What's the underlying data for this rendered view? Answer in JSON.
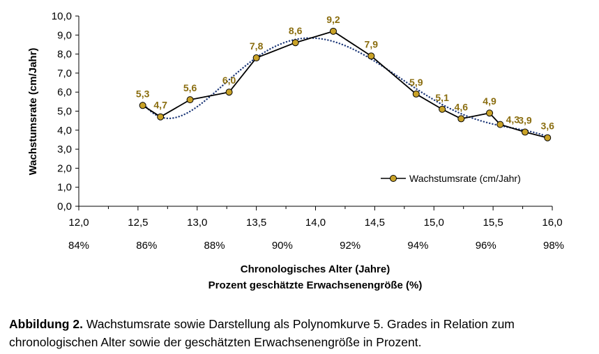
{
  "chart_data": {
    "type": "line",
    "ylabel": "Wachstumsrate (cm/Jahr)",
    "xlabel": "Chronologisches Alter (Jahre)",
    "xlabel2": "Prozent geschätzte Erwachsenengröße (%)",
    "xlim": [
      12.0,
      16.0
    ],
    "ylim": [
      0.0,
      10.0
    ],
    "x_ticks": [
      "12,0",
      "12,5",
      "13,0",
      "13,5",
      "14,0",
      "14,5",
      "15,0",
      "15,5",
      "16,0"
    ],
    "x2_ticks": [
      "84%",
      "86%",
      "88%",
      "90%",
      "92%",
      "94%",
      "96%",
      "98%"
    ],
    "y_ticks": [
      "0,0",
      "1,0",
      "2,0",
      "3,0",
      "4,0",
      "5,0",
      "6,0",
      "7,0",
      "8,0",
      "9,0",
      "10,0"
    ],
    "grid": false,
    "legend_position": "lower-right",
    "series": [
      {
        "name": "Wachstumsrate (cm/Jahr)",
        "color": "#000000",
        "marker_color": "#c9a227",
        "x": [
          12.54,
          12.69,
          12.94,
          13.27,
          13.5,
          13.83,
          14.15,
          14.47,
          14.85,
          15.07,
          15.23,
          15.47,
          15.56,
          15.77,
          15.96
        ],
        "y": [
          5.3,
          4.7,
          5.6,
          6.0,
          7.8,
          8.6,
          9.2,
          7.9,
          5.9,
          5.1,
          4.6,
          4.9,
          4.3,
          3.9,
          3.6
        ],
        "labels": [
          "5,3",
          "4,7",
          "5,6",
          "6,0",
          "7,8",
          "8,6",
          "9,2",
          "7,9",
          "5,9",
          "5,1",
          "4,6",
          "4,9",
          "4,3",
          "3,9",
          "3,6"
        ]
      }
    ],
    "trendline": {
      "type": "polynomial",
      "order": 5,
      "color": "#1f3a7a",
      "style": "dotted"
    },
    "label_color": "#8a6d0f"
  },
  "caption": {
    "prefix": "Abbildung 2.",
    "text": " Wachstumsrate sowie Darstellung als Polynomkurve 5. Grades in Relation zum chronologischen Alter sowie der geschätzten Erwachsenengröße in Prozent."
  }
}
